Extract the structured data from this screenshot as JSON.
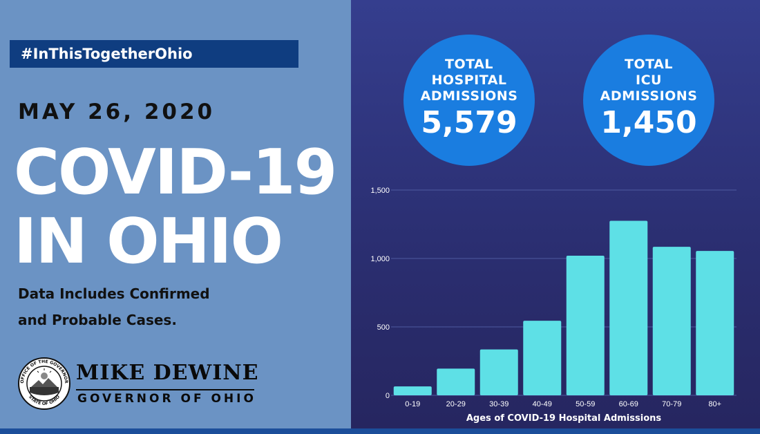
{
  "hashtag": "#InThisTogetherOhio",
  "date": "MAY 26, 2020",
  "headline": {
    "line1": "COVID-19",
    "line2": "IN OHIO"
  },
  "note": {
    "line1": "Data Includes Confirmed",
    "line2": "and Probable Cases."
  },
  "governor": {
    "name": "MIKE DEWINE",
    "title": "GOVERNOR OF OHIO",
    "seal_text_top": "OFFICE OF THE GOVERNOR",
    "seal_text_bottom": "STATE OF OHIO"
  },
  "stats": [
    {
      "label_lines": [
        "TOTAL",
        "HOSPITAL",
        "ADMISSIONS"
      ],
      "value": "5,579"
    },
    {
      "label_lines": [
        "TOTAL",
        "ICU",
        "ADMISSIONS"
      ],
      "value": "1,450"
    }
  ],
  "colors": {
    "left_panel": "#6b93c4",
    "right_panel": "#2d3278",
    "bar": "#5ee0e6",
    "circle": "#1a7de0",
    "hashtag_bg": "#0f3d80"
  },
  "chart_data": {
    "type": "bar",
    "categories": [
      "0-19",
      "20-29",
      "30-39",
      "40-49",
      "50-59",
      "60-69",
      "70-79",
      "80+"
    ],
    "values": [
      65,
      195,
      335,
      545,
      1020,
      1275,
      1085,
      1055
    ],
    "xlabel": "Ages of COVID-19 Hospital Admissions",
    "ylabel": "",
    "ylim": [
      0,
      1500
    ],
    "yticks": [
      0,
      500,
      1000,
      1500
    ],
    "ytick_labels": [
      "0",
      "500",
      "1,000",
      "1,500"
    ],
    "grid": true
  }
}
